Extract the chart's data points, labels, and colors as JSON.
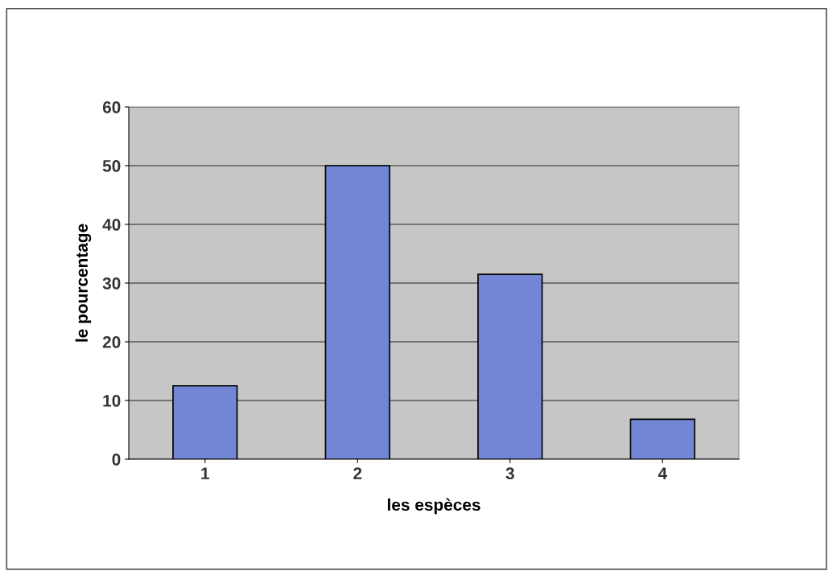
{
  "chart_data": {
    "type": "bar",
    "xlabel": "les espèces",
    "ylabel": "le pourcentage",
    "categories": [
      "1",
      "2",
      "3",
      "4"
    ],
    "values": [
      12.5,
      50,
      31.5,
      6.8
    ],
    "color": "#7386d6",
    "ylim": [
      0,
      60
    ],
    "yticks": [
      0,
      10,
      20,
      30,
      40,
      50,
      60
    ],
    "grid": "y",
    "legend": false
  }
}
